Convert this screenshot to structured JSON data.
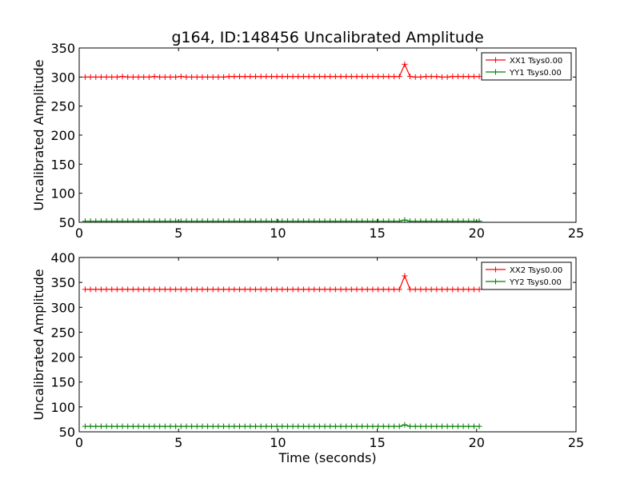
{
  "chart_data": [
    {
      "type": "line",
      "title": "g164, ID:148456 Uncalibrated Amplitude",
      "xlabel": "",
      "ylabel": "Uncalibrated Amplitude",
      "xlim": [
        0,
        25
      ],
      "ylim": [
        50,
        350
      ],
      "xticks": [
        "0",
        "5",
        "10",
        "15",
        "20",
        "25"
      ],
      "yticks": [
        "50",
        "100",
        "150",
        "200",
        "250",
        "300",
        "350"
      ],
      "legend_position": "top-right",
      "x": {
        "start": 0.3,
        "step": 0.268,
        "count": 75
      },
      "series": [
        {
          "name": "XX1 Tsys0.00",
          "color": "#ff0000",
          "marker": "+",
          "values": [
            300,
            300,
            300,
            300,
            300,
            300,
            300,
            301,
            300,
            300,
            300,
            300,
            300,
            301,
            300,
            300,
            300,
            300,
            301,
            300,
            300,
            300,
            300,
            300,
            300,
            300,
            300,
            301,
            301,
            301,
            301,
            301,
            301,
            301,
            301,
            301,
            301,
            301,
            301,
            301,
            301,
            301,
            301,
            301,
            301,
            301,
            301,
            301,
            301,
            301,
            301,
            301,
            301,
            301,
            301,
            301,
            301,
            301,
            301,
            301,
            322,
            301,
            300,
            300,
            301,
            301,
            301,
            300,
            300,
            301,
            301,
            301,
            301,
            301,
            301
          ]
        },
        {
          "name": "YY1 Tsys0.00",
          "color": "#008000",
          "marker": "+",
          "values": [
            52,
            52,
            52,
            52,
            52,
            52,
            52,
            52,
            52,
            52,
            52,
            52,
            52,
            52,
            52,
            52,
            52,
            52,
            52,
            52,
            52,
            52,
            52,
            52,
            52,
            52,
            52,
            52,
            52,
            52,
            52,
            52,
            52,
            52,
            52,
            52,
            52,
            52,
            52,
            52,
            52,
            52,
            52,
            52,
            52,
            52,
            52,
            52,
            52,
            52,
            52,
            52,
            52,
            52,
            52,
            52,
            52,
            52,
            52,
            52,
            54,
            52,
            52,
            52,
            52,
            52,
            52,
            52,
            52,
            52,
            52,
            52,
            52,
            52,
            52
          ]
        }
      ]
    },
    {
      "type": "line",
      "title": "",
      "xlabel": "Time (seconds)",
      "ylabel": "Uncalibrated Amplitude",
      "xlim": [
        0,
        25
      ],
      "ylim": [
        50,
        400
      ],
      "xticks": [
        "0",
        "5",
        "10",
        "15",
        "20",
        "25"
      ],
      "yticks": [
        "50",
        "100",
        "150",
        "200",
        "250",
        "300",
        "350",
        "400"
      ],
      "legend_position": "top-right",
      "x": {
        "start": 0.3,
        "step": 0.268,
        "count": 75
      },
      "series": [
        {
          "name": "XX2 Tsys0.00",
          "color": "#ff0000",
          "marker": "+",
          "values": [
            336,
            336,
            336,
            336,
            336,
            336,
            336,
            336,
            336,
            336,
            336,
            336,
            336,
            336,
            336,
            336,
            336,
            336,
            336,
            336,
            336,
            336,
            336,
            336,
            336,
            336,
            336,
            336,
            336,
            336,
            336,
            336,
            336,
            336,
            336,
            336,
            336,
            336,
            336,
            336,
            336,
            336,
            336,
            336,
            336,
            336,
            336,
            336,
            336,
            336,
            336,
            336,
            336,
            336,
            336,
            336,
            336,
            336,
            336,
            336,
            363,
            336,
            336,
            336,
            336,
            336,
            336,
            336,
            336,
            336,
            336,
            336,
            336,
            336,
            336
          ]
        },
        {
          "name": "YY2 Tsys0.00",
          "color": "#008000",
          "marker": "+",
          "values": [
            61,
            61,
            61,
            61,
            61,
            61,
            61,
            61,
            61,
            61,
            61,
            61,
            61,
            61,
            61,
            61,
            61,
            61,
            61,
            61,
            61,
            61,
            61,
            61,
            61,
            61,
            61,
            61,
            61,
            61,
            61,
            61,
            61,
            61,
            61,
            61,
            61,
            61,
            61,
            61,
            61,
            61,
            61,
            61,
            61,
            61,
            61,
            61,
            61,
            61,
            61,
            61,
            61,
            61,
            61,
            61,
            61,
            61,
            61,
            61,
            64,
            61,
            61,
            61,
            61,
            61,
            61,
            61,
            61,
            61,
            61,
            61,
            61,
            61,
            61
          ]
        }
      ]
    }
  ]
}
